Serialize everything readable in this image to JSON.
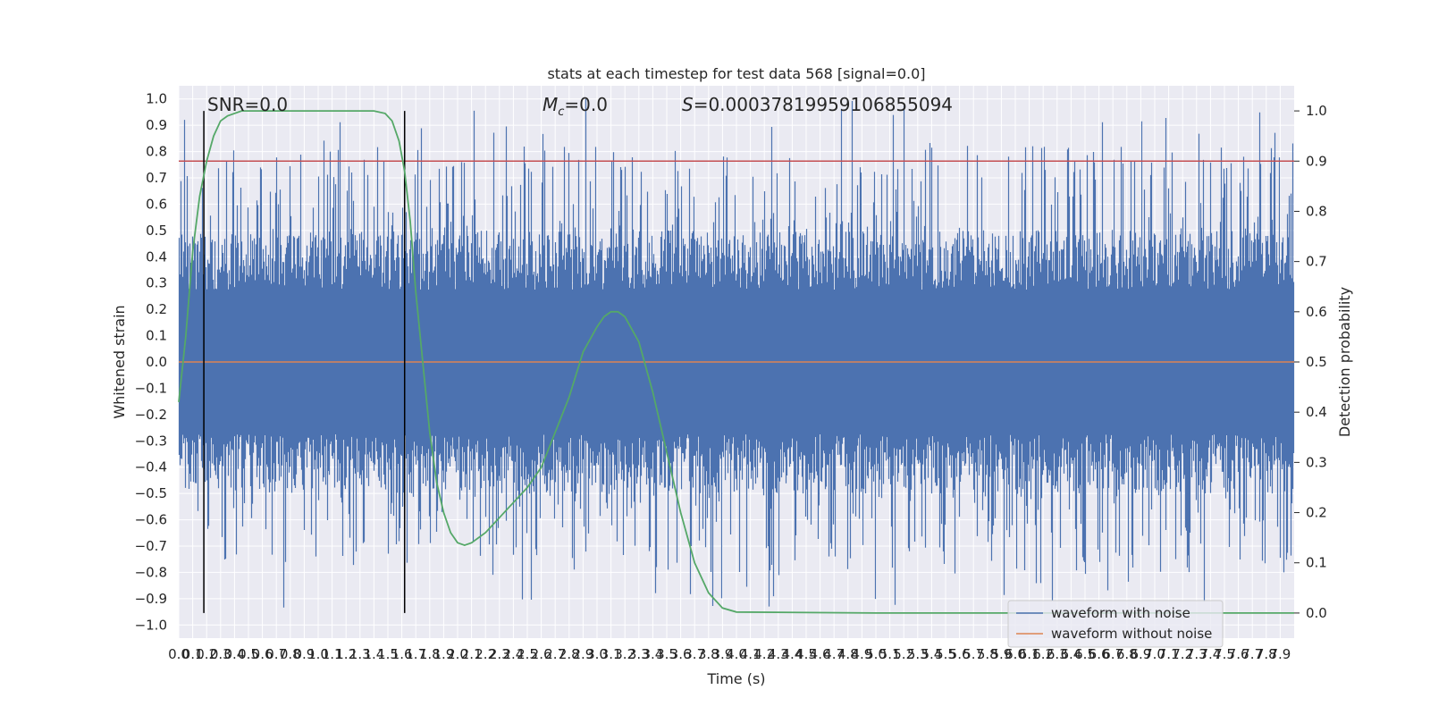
{
  "chart_data": {
    "type": "line",
    "title": "stats at each timestep for test data 568 [signal=0.0]",
    "xlabel": "Time (s)",
    "ylabel": "Whitened strain",
    "y2label": "Detection probability",
    "xlim": [
      0.0,
      8.0
    ],
    "ylim": [
      -1.05,
      1.05
    ],
    "y2lim": [
      -0.05,
      1.05
    ],
    "x_ticks": [
      "0.0",
      "0.1",
      "0.2",
      "0.3",
      "0.4",
      "0.5",
      "0.6",
      "0.7",
      "0.8",
      "0.9",
      "1.0",
      "1.1",
      "1.2",
      "1.3",
      "1.4",
      "1.5",
      "1.6",
      "1.7",
      "1.8",
      "1.9",
      "2.0",
      "2.1",
      "2.2",
      "2.3",
      "2.4",
      "2.5",
      "2.6",
      "2.7",
      "2.8",
      "2.9",
      "3.0",
      "3.1",
      "3.2",
      "3.3",
      "3.4",
      "3.5",
      "3.6",
      "3.7",
      "3.8",
      "3.9",
      "4.0",
      "4.1",
      "4.2",
      "4.3",
      "4.4",
      "4.5",
      "4.6",
      "4.7",
      "4.8",
      "4.9",
      "5.0",
      "5.1",
      "5.2",
      "5.3",
      "5.4",
      "5.5",
      "5.6",
      "5.7",
      "5.8",
      "5.9",
      "6.0",
      "6.1",
      "6.2",
      "6.3",
      "6.4",
      "6.5",
      "6.6",
      "6.7",
      "6.8",
      "6.9",
      "7.0",
      "7.1",
      "7.2",
      "7.3",
      "7.4",
      "7.5",
      "7.6",
      "7.7",
      "7.8",
      "7.9"
    ],
    "y_ticks": [
      "1.0",
      "0.9",
      "0.8",
      "0.7",
      "0.6",
      "0.5",
      "0.4",
      "0.3",
      "0.2",
      "0.1",
      "0.0",
      "−0.1",
      "−0.2",
      "−0.3",
      "−0.4",
      "−0.5",
      "−0.6",
      "−0.7",
      "−0.8",
      "−0.9",
      "−1.0"
    ],
    "y2_ticks": [
      "1.0",
      "0.9",
      "0.8",
      "0.7",
      "0.6",
      "0.5",
      "0.4",
      "0.3",
      "0.2",
      "0.1",
      "0.0"
    ],
    "annotations": {
      "snr": "SNR=0.0",
      "mc_symbol": "M",
      "mc_sub": "c",
      "mc_value": "=0.0",
      "s_symbol": "S",
      "s_value": "=0.00037819959106855094"
    },
    "vlines": [
      0.18,
      1.62
    ],
    "hline_threshold_prob": 0.9,
    "noise_envelope": {
      "typical_max": 0.5,
      "typical_min": -0.5,
      "max": 1.0,
      "min": -0.94
    },
    "series": [
      {
        "name": "waveform with noise",
        "color": "#4c72b0"
      },
      {
        "name": "waveform without noise",
        "color": "#dd8452",
        "values_constant": 0.0
      },
      {
        "color": "#55a868",
        "axis": "right",
        "points": [
          [
            0.0,
            0.42
          ],
          [
            0.05,
            0.55
          ],
          [
            0.1,
            0.72
          ],
          [
            0.15,
            0.83
          ],
          [
            0.2,
            0.9
          ],
          [
            0.25,
            0.95
          ],
          [
            0.3,
            0.98
          ],
          [
            0.35,
            0.99
          ],
          [
            0.45,
            1.0
          ],
          [
            1.0,
            1.0
          ],
          [
            1.4,
            1.0
          ],
          [
            1.48,
            0.995
          ],
          [
            1.53,
            0.98
          ],
          [
            1.58,
            0.94
          ],
          [
            1.62,
            0.88
          ],
          [
            1.66,
            0.78
          ],
          [
            1.7,
            0.64
          ],
          [
            1.75,
            0.5
          ],
          [
            1.8,
            0.36
          ],
          [
            1.85,
            0.26
          ],
          [
            1.9,
            0.2
          ],
          [
            1.95,
            0.16
          ],
          [
            2.0,
            0.14
          ],
          [
            2.05,
            0.135
          ],
          [
            2.1,
            0.14
          ],
          [
            2.2,
            0.16
          ],
          [
            2.3,
            0.19
          ],
          [
            2.4,
            0.22
          ],
          [
            2.5,
            0.25
          ],
          [
            2.6,
            0.29
          ],
          [
            2.7,
            0.36
          ],
          [
            2.8,
            0.43
          ],
          [
            2.9,
            0.52
          ],
          [
            3.0,
            0.57
          ],
          [
            3.05,
            0.59
          ],
          [
            3.1,
            0.6
          ],
          [
            3.15,
            0.6
          ],
          [
            3.2,
            0.59
          ],
          [
            3.3,
            0.54
          ],
          [
            3.4,
            0.44
          ],
          [
            3.5,
            0.32
          ],
          [
            3.6,
            0.2
          ],
          [
            3.7,
            0.1
          ],
          [
            3.8,
            0.04
          ],
          [
            3.9,
            0.01
          ],
          [
            4.0,
            0.002
          ],
          [
            5.0,
            0.0
          ],
          [
            8.0,
            0.0
          ]
        ]
      }
    ],
    "legend": {
      "placement": "lower-right",
      "entries": [
        "waveform with noise",
        "waveform without noise"
      ]
    },
    "grid": true,
    "colors": {
      "background": "#eaeaf2",
      "grid": "#ffffff",
      "threshold": "#c44e52",
      "vline": "#000000"
    }
  }
}
